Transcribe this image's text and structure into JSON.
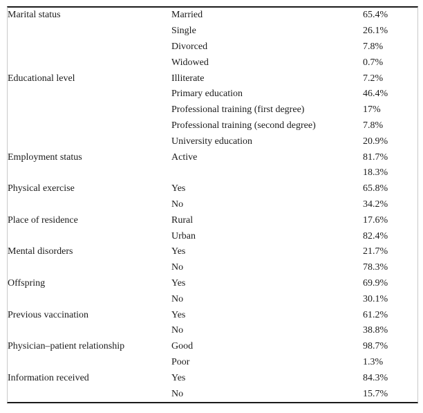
{
  "table": {
    "description": "Descriptive statistics table of sample characteristics with percentages",
    "columns": [
      "category",
      "label",
      "value"
    ],
    "rows": [
      {
        "category": "Marital status",
        "label": "Married",
        "value": "65.4%"
      },
      {
        "category": "",
        "label": "Single",
        "value": "26.1%"
      },
      {
        "category": "",
        "label": "Divorced",
        "value": "7.8%"
      },
      {
        "category": "",
        "label": "Widowed",
        "value": "0.7%"
      },
      {
        "category": "Educational level",
        "label": "Illiterate",
        "value": "7.2%"
      },
      {
        "category": "",
        "label": "Primary education",
        "value": "46.4%"
      },
      {
        "category": "",
        "label": "Professional training (first degree)",
        "value": "17%"
      },
      {
        "category": "",
        "label": "Professional training (second degree)",
        "value": "7.8%"
      },
      {
        "category": "",
        "label": "University education",
        "value": "20.9%"
      },
      {
        "category": "Employment status",
        "label": "Active",
        "value": "81.7%"
      },
      {
        "category": "",
        "label": "",
        "value": "18.3%"
      },
      {
        "category": "Physical exercise",
        "label": "Yes",
        "value": "65.8%"
      },
      {
        "category": "",
        "label": "No",
        "value": "34.2%"
      },
      {
        "category": "Place of residence",
        "label": "Rural",
        "value": "17.6%"
      },
      {
        "category": "",
        "label": "Urban",
        "value": "82.4%"
      },
      {
        "category": "Mental disorders",
        "label": "Yes",
        "value": "21.7%"
      },
      {
        "category": "",
        "label": "No",
        "value": "78.3%"
      },
      {
        "category": "Offspring",
        "label": "Yes",
        "value": "69.9%"
      },
      {
        "category": "",
        "label": "No",
        "value": "30.1%"
      },
      {
        "category": "Previous vaccination",
        "label": "Yes",
        "value": "61.2%"
      },
      {
        "category": "",
        "label": "No",
        "value": "38.8%"
      },
      {
        "category": "Physician–patient relationship",
        "label": "Good",
        "value": "98.7%"
      },
      {
        "category": "",
        "label": "Poor",
        "value": "1.3%"
      },
      {
        "category": "Information received",
        "label": "Yes",
        "value": "84.3%"
      },
      {
        "category": "",
        "label": "No",
        "value": "15.7%"
      }
    ]
  },
  "colors": {
    "rule": "#1a1a1a",
    "side_border": "#c9c9c9",
    "text": "#1b1b1b",
    "background": "#ffffff"
  }
}
